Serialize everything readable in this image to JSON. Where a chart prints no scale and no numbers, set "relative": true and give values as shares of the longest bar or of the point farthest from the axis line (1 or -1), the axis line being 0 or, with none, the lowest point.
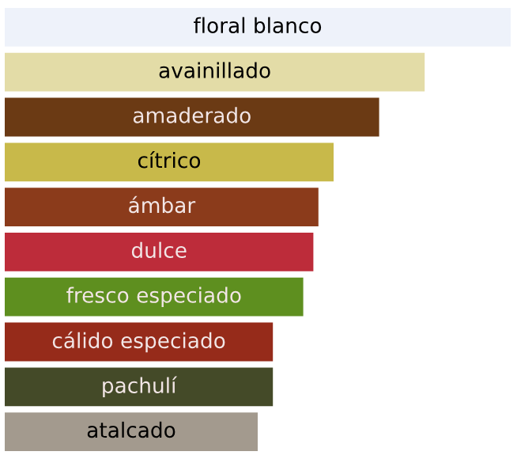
{
  "chart_data": {
    "type": "bar",
    "orientation": "horizontal",
    "relative": true,
    "categories": [
      "floral blanco",
      "avainillado",
      "amaderado",
      "cítrico",
      "ámbar",
      "dulce",
      "fresco especiado",
      "cálido especiado",
      "pachulí",
      "atalcado"
    ],
    "values": [
      1,
      0.83,
      0.74,
      0.65,
      0.62,
      0.61,
      0.59,
      0.53,
      0.53,
      0.5
    ],
    "colors": [
      "#eef2fa",
      "#e3dca7",
      "#6b3a14",
      "#c8b94a",
      "#8b3b1b",
      "#bd2c3a",
      "#5e8f1f",
      "#962b1a",
      "#444a28",
      "#a39a8e"
    ]
  }
}
